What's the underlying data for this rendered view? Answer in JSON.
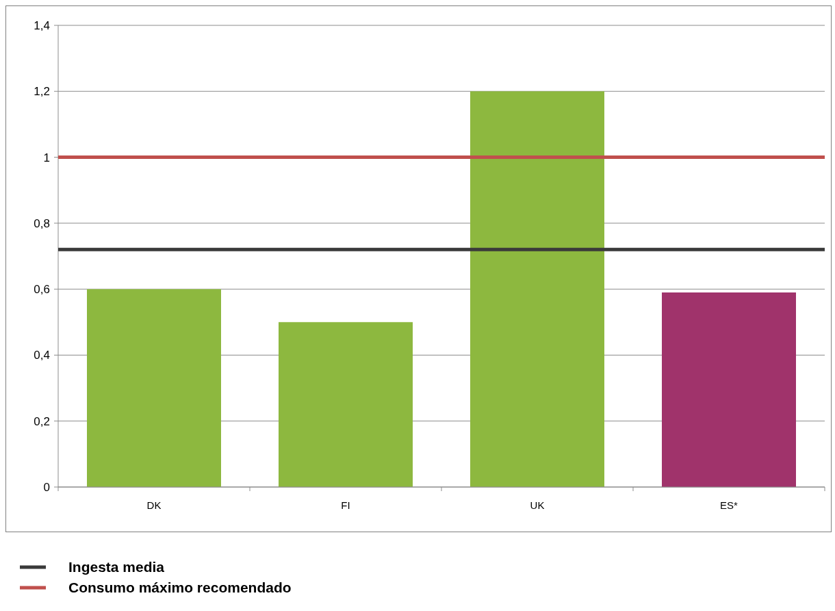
{
  "chart_data": {
    "type": "bar",
    "categories": [
      "DK",
      "FI",
      "UK",
      "ES*"
    ],
    "values": [
      0.6,
      0.5,
      1.2,
      0.59
    ],
    "colors": [
      "#8db83f",
      "#8db83f",
      "#8db83f",
      "#a0336b"
    ],
    "ylim": [
      0,
      1.4
    ],
    "yticks": [
      0,
      {
        "value": 0.2,
        "label": "0,2"
      },
      {
        "value": 0.4,
        "label": "0,4"
      },
      {
        "value": 0.6,
        "label": "0,6"
      },
      {
        "value": 0.8,
        "label": "0,8"
      },
      1,
      {
        "value": 1.2,
        "label": "1,2"
      },
      {
        "value": 1.4,
        "label": "1,4"
      }
    ],
    "grid": "y",
    "ref_lines": [
      {
        "axis": "y",
        "value": 0.72,
        "label": "Ingesta media",
        "color": "#3a3a3a"
      },
      {
        "axis": "y",
        "value": 1,
        "label": "Consumo máximo recomendado",
        "color": "#c0504d"
      }
    ],
    "legend": "bottom"
  }
}
